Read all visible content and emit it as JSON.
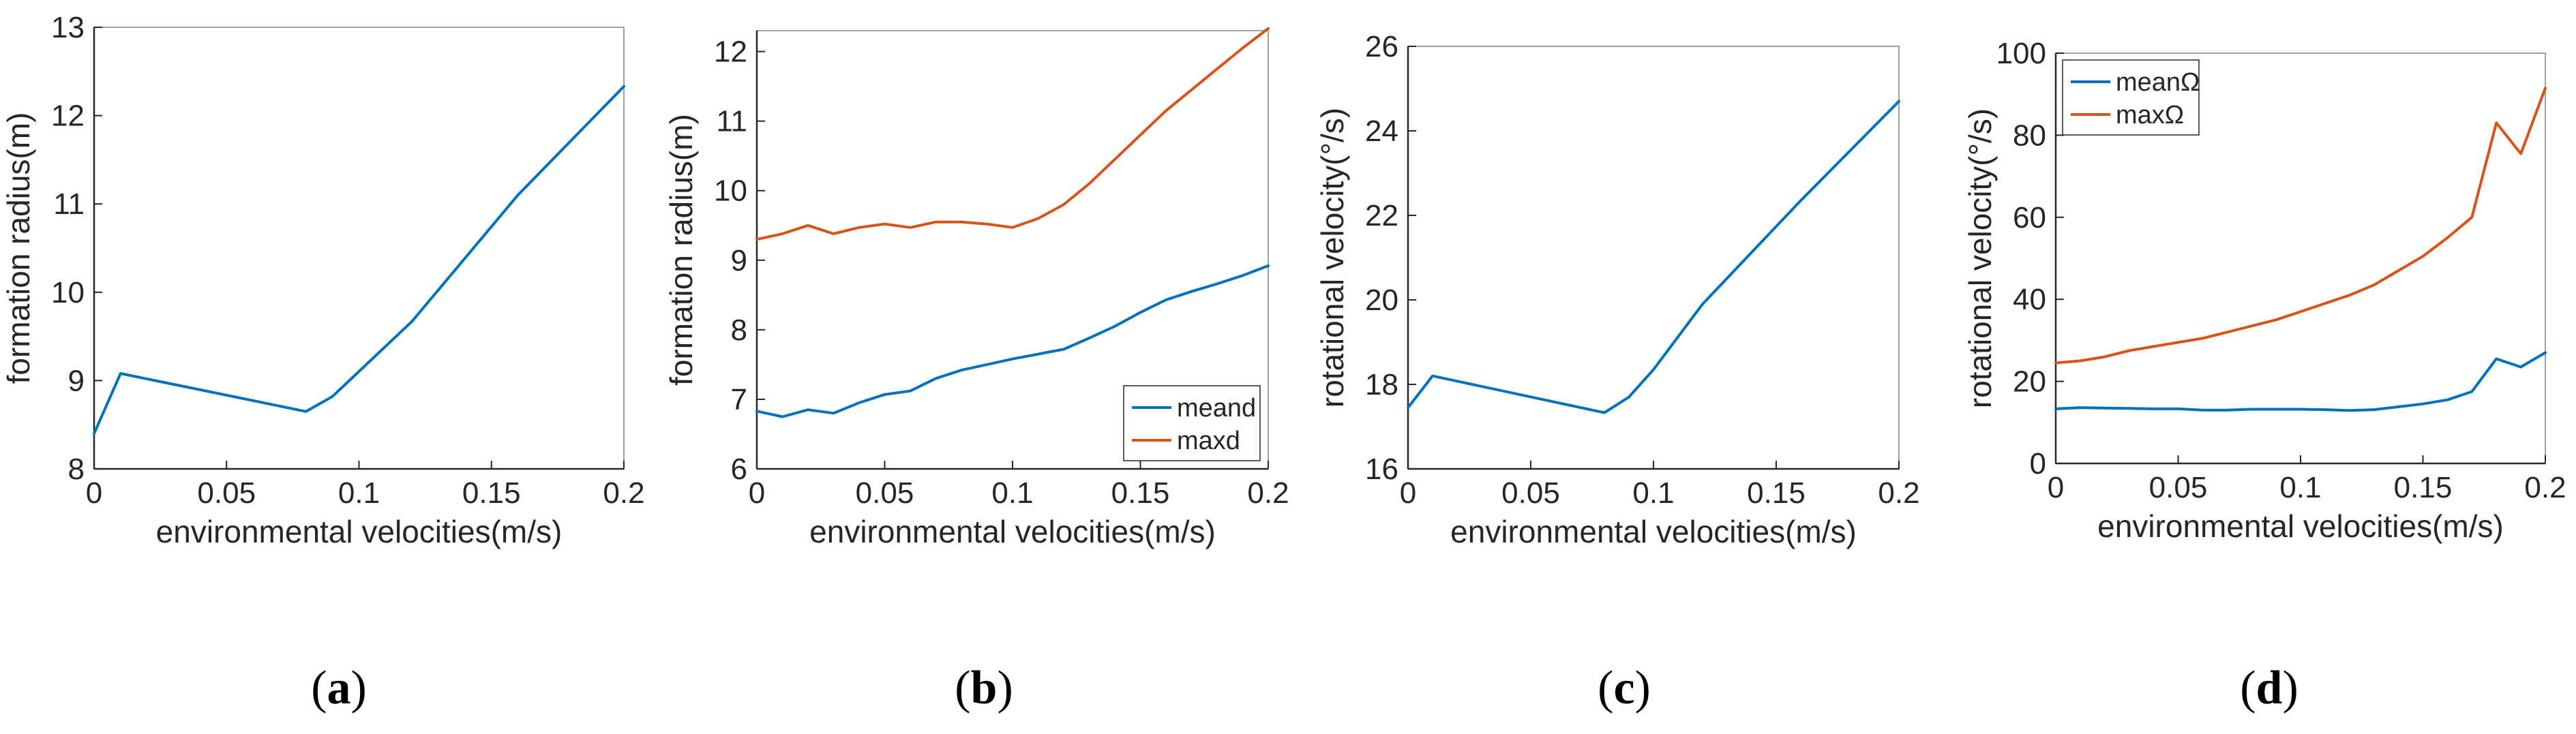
{
  "colors": {
    "blue": "#0072BD",
    "orange": "#D95319",
    "axis": "#262626",
    "frame": "#A0A0A0"
  },
  "chart_data": [
    {
      "type": "line",
      "panel_label": "a",
      "xlabel": "environmental velocities(m/s)",
      "ylabel": "formation radius(m)",
      "xlim": [
        0,
        0.2
      ],
      "ylim": [
        8,
        13
      ],
      "xticks": [
        0,
        0.05,
        0.1,
        0.15,
        0.2
      ],
      "xtick_labels": [
        "0",
        "0.05",
        "0.1",
        "0.15",
        "0.2"
      ],
      "yticks": [
        8,
        9,
        10,
        11,
        12,
        13
      ],
      "ytick_labels": [
        "8",
        "9",
        "10",
        "11",
        "12",
        "13"
      ],
      "legend": null,
      "series": [
        {
          "name": "formation radius",
          "color": "#0072BD",
          "x": [
            0,
            0.01,
            0.08,
            0.09,
            0.12,
            0.16,
            0.2
          ],
          "y": [
            8.4,
            9.08,
            8.65,
            8.82,
            9.67,
            11.1,
            12.33
          ]
        }
      ]
    },
    {
      "type": "line",
      "panel_label": "b",
      "xlabel": "environmental velocities(m/s)",
      "ylabel": "formation radius(m)",
      "xlim": [
        0,
        0.2
      ],
      "ylim": [
        6,
        12.3
      ],
      "xticks": [
        0,
        0.05,
        0.1,
        0.15,
        0.2
      ],
      "xtick_labels": [
        "0",
        "0.05",
        "0.1",
        "0.15",
        "0.2"
      ],
      "yticks": [
        6,
        7,
        8,
        9,
        10,
        11,
        12
      ],
      "ytick_labels": [
        "6",
        "7",
        "8",
        "9",
        "10",
        "11",
        "12"
      ],
      "legend": "bottom-right",
      "series": [
        {
          "name": "meand",
          "color": "#0072BD",
          "x": [
            0,
            0.01,
            0.02,
            0.03,
            0.04,
            0.05,
            0.06,
            0.07,
            0.08,
            0.09,
            0.1,
            0.11,
            0.12,
            0.13,
            0.14,
            0.15,
            0.16,
            0.17,
            0.18,
            0.19,
            0.2
          ],
          "y": [
            6.83,
            6.75,
            6.85,
            6.8,
            6.95,
            7.07,
            7.12,
            7.3,
            7.42,
            7.5,
            7.58,
            7.65,
            7.72,
            7.88,
            8.05,
            8.25,
            8.43,
            8.55,
            8.66,
            8.78,
            8.92
          ]
        },
        {
          "name": "maxd",
          "color": "#D95319",
          "x": [
            0,
            0.01,
            0.02,
            0.03,
            0.04,
            0.05,
            0.06,
            0.07,
            0.08,
            0.09,
            0.1,
            0.11,
            0.12,
            0.13,
            0.14,
            0.15,
            0.16,
            0.17,
            0.18,
            0.19,
            0.2
          ],
          "y": [
            9.3,
            9.38,
            9.5,
            9.38,
            9.47,
            9.52,
            9.47,
            9.55,
            9.55,
            9.52,
            9.47,
            9.6,
            9.8,
            10.1,
            10.45,
            10.8,
            11.15,
            11.45,
            11.75,
            12.05,
            12.33
          ]
        }
      ]
    },
    {
      "type": "line",
      "panel_label": "c",
      "xlabel": "environmental velocities(m/s)",
      "ylabel": "rotational velocity(°/s)",
      "xlim": [
        0,
        0.2
      ],
      "ylim": [
        16,
        26
      ],
      "xticks": [
        0,
        0.05,
        0.1,
        0.15,
        0.2
      ],
      "xtick_labels": [
        "0",
        "0.05",
        "0.1",
        "0.15",
        "0.2"
      ],
      "yticks": [
        16,
        18,
        20,
        22,
        24,
        26
      ],
      "ytick_labels": [
        "16",
        "18",
        "20",
        "22",
        "24",
        "26"
      ],
      "legend": null,
      "series": [
        {
          "name": "rotational velocity",
          "color": "#0072BD",
          "x": [
            0,
            0.01,
            0.08,
            0.09,
            0.1,
            0.12,
            0.16,
            0.2
          ],
          "y": [
            17.45,
            18.2,
            17.33,
            17.7,
            18.35,
            19.9,
            22.35,
            24.7
          ]
        }
      ]
    },
    {
      "type": "line",
      "panel_label": "d",
      "xlabel": "environmental velocities(m/s)",
      "ylabel": "rotational velocity(°/s)",
      "xlim": [
        0,
        0.2
      ],
      "ylim": [
        0,
        100
      ],
      "xticks": [
        0,
        0.05,
        0.1,
        0.15,
        0.2
      ],
      "xtick_labels": [
        "0",
        "0.05",
        "0.1",
        "0.15",
        "0.2"
      ],
      "yticks": [
        0,
        20,
        40,
        60,
        80,
        100
      ],
      "ytick_labels": [
        "0",
        "20",
        "40",
        "60",
        "80",
        "100"
      ],
      "legend": "top-left",
      "series": [
        {
          "name": "meanΩ",
          "color": "#0072BD",
          "x": [
            0,
            0.01,
            0.02,
            0.03,
            0.04,
            0.05,
            0.06,
            0.07,
            0.08,
            0.09,
            0.1,
            0.11,
            0.12,
            0.13,
            0.14,
            0.15,
            0.16,
            0.17,
            0.18,
            0.19,
            0.2
          ],
          "y": [
            13.3,
            13.6,
            13.5,
            13.4,
            13.3,
            13.3,
            13.0,
            13.0,
            13.2,
            13.2,
            13.2,
            13.1,
            12.9,
            13.1,
            13.8,
            14.5,
            15.5,
            17.5,
            25.5,
            23.5,
            27.0
          ]
        },
        {
          "name": "maxΩ",
          "color": "#D95319",
          "x": [
            0,
            0.01,
            0.02,
            0.03,
            0.04,
            0.05,
            0.06,
            0.07,
            0.08,
            0.09,
            0.1,
            0.11,
            0.12,
            0.13,
            0.14,
            0.15,
            0.16,
            0.17,
            0.18,
            0.19,
            0.2
          ],
          "y": [
            24.5,
            25.0,
            26.0,
            27.5,
            28.5,
            29.5,
            30.5,
            32.0,
            33.5,
            35.0,
            37.0,
            39.0,
            41.0,
            43.5,
            47.0,
            50.5,
            55.0,
            60.0,
            83.0,
            75.5,
            91.5
          ]
        }
      ]
    }
  ]
}
